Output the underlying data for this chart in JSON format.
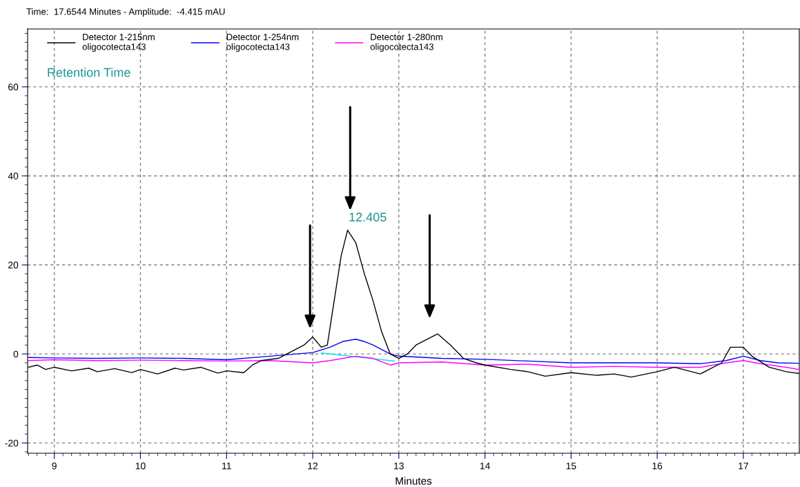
{
  "chart_data": {
    "type": "line",
    "title": "Time:  17.6544 Minutes - Amplitude:  -4.415 mAU",
    "xlabel": "Minutes",
    "xlim": [
      8.69,
      17.65
    ],
    "xticks": [
      9,
      10,
      11,
      12,
      13,
      14,
      15,
      16,
      17
    ],
    "ylim": [
      -22.3,
      73
    ],
    "yticks": [
      -20,
      0,
      20,
      40,
      60
    ],
    "grid": true,
    "legend": "top left",
    "line_style": "solid",
    "marker": "none",
    "series": [
      {
        "name": "Detector 1-215nm\noligocotecta143",
        "color": "#000000",
        "x": [
          8.7,
          8.8,
          8.9,
          9.0,
          9.2,
          9.4,
          9.5,
          9.7,
          9.9,
          10.0,
          10.2,
          10.4,
          10.5,
          10.7,
          10.9,
          11.0,
          11.2,
          11.3,
          11.4,
          11.6,
          11.8,
          11.9,
          12.0,
          12.1,
          12.17,
          12.25,
          12.33,
          12.405,
          12.5,
          12.6,
          12.7,
          12.8,
          12.9,
          13.0,
          13.1,
          13.2,
          13.3,
          13.45,
          13.6,
          13.75,
          13.9,
          14.0,
          14.3,
          14.5,
          14.7,
          15.0,
          15.3,
          15.5,
          15.7,
          16.0,
          16.2,
          16.5,
          16.75,
          16.85,
          17.0,
          17.1,
          17.3,
          17.5,
          17.65
        ],
        "values": [
          -3.0,
          -2.5,
          -3.5,
          -3.0,
          -3.8,
          -3.2,
          -4.0,
          -3.3,
          -4.2,
          -3.5,
          -4.5,
          -3.2,
          -3.6,
          -3.0,
          -4.3,
          -3.8,
          -4.2,
          -2.5,
          -1.5,
          -1.0,
          1.0,
          2.0,
          3.8,
          1.5,
          2.0,
          12.0,
          22.0,
          27.8,
          25.0,
          18.0,
          12.0,
          5.0,
          0.0,
          -1.0,
          0.0,
          2.0,
          3.0,
          4.5,
          2.0,
          -1.0,
          -2.0,
          -2.5,
          -3.5,
          -4.0,
          -5.0,
          -4.2,
          -4.8,
          -4.5,
          -5.2,
          -4.0,
          -3.0,
          -4.5,
          -2.0,
          1.5,
          1.5,
          -0.5,
          -3.0,
          -4.0,
          -4.4
        ]
      },
      {
        "name": "Detector 1-254nm\noligocotecta143",
        "color": "#0000ff",
        "x": [
          8.7,
          9.0,
          9.5,
          10.0,
          10.5,
          11.0,
          11.5,
          12.0,
          12.2,
          12.35,
          12.5,
          12.6,
          12.7,
          12.9,
          13.0,
          13.5,
          14.0,
          14.5,
          15.0,
          15.5,
          16.0,
          16.5,
          16.8,
          17.0,
          17.2,
          17.4,
          17.65
        ],
        "values": [
          -0.8,
          -0.9,
          -1.0,
          -0.9,
          -1.0,
          -1.3,
          -0.5,
          0.3,
          1.5,
          2.8,
          3.3,
          2.8,
          2.0,
          0.0,
          -0.5,
          -1.0,
          -1.2,
          -1.6,
          -2.0,
          -2.0,
          -2.0,
          -2.2,
          -1.5,
          -0.5,
          -1.5,
          -2.0,
          -2.1
        ]
      },
      {
        "name": "Detector 1-280nm\noligocotecta143",
        "color": "#ff00ff",
        "x": [
          8.7,
          9.0,
          9.5,
          10.0,
          10.5,
          11.0,
          11.5,
          12.0,
          12.2,
          12.5,
          12.7,
          12.9,
          13.0,
          13.5,
          14.0,
          14.5,
          15.0,
          15.5,
          16.0,
          16.5,
          16.8,
          17.0,
          17.2,
          17.5,
          17.65
        ],
        "values": [
          -1.5,
          -1.3,
          -1.5,
          -1.4,
          -1.5,
          -1.6,
          -1.5,
          -2.0,
          -1.5,
          -0.5,
          -1.0,
          -2.5,
          -2.0,
          -1.8,
          -2.5,
          -2.3,
          -3.0,
          -2.8,
          -3.0,
          -3.0,
          -2.0,
          -1.5,
          -2.2,
          -3.0,
          -3.5
        ]
      },
      {
        "color": "#00e5ee",
        "x": [
          12.1,
          12.95
        ],
        "values": [
          0.2,
          -1.6
        ]
      }
    ],
    "annotations": [
      "Retention Time",
      "12.405"
    ]
  }
}
